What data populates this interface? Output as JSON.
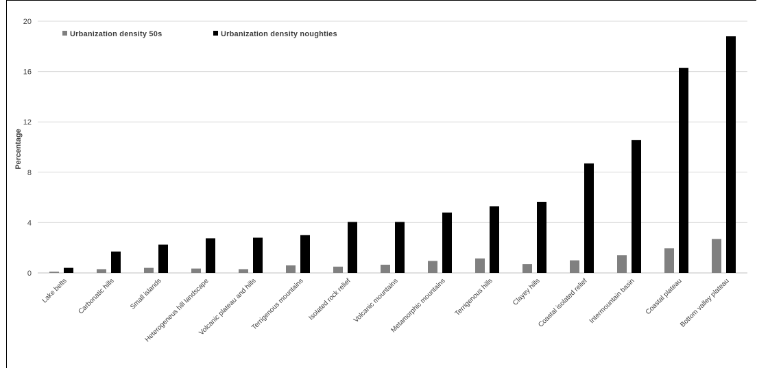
{
  "chart_data": {
    "type": "bar",
    "title": "",
    "xlabel": "",
    "ylabel": "Percentage",
    "ylim": [
      0,
      20
    ],
    "yticks": [
      0,
      4,
      8,
      12,
      16,
      20
    ],
    "grid": true,
    "legend_position": "top-left",
    "categories": [
      "Lake belts",
      "Carbonatic hills",
      "Small islands",
      "Heterogeneus hill landscape",
      "Volcanic plateau and hills",
      "Terrigenous mountains",
      "Isolated rock relief",
      "Volcanic mountains",
      "Metamorphic mountains",
      "Terrigenous hills",
      "Clayey hills",
      "Coastal isolated relief",
      "Intermountain basin",
      "Coastal plateau",
      "Bottom valley plateau"
    ],
    "series": [
      {
        "name": "Urbanization density 50s",
        "color": "#808080",
        "values": [
          0.1,
          0.3,
          0.4,
          0.35,
          0.3,
          0.6,
          0.5,
          0.65,
          0.95,
          1.15,
          0.7,
          1.0,
          1.4,
          1.95,
          2.7
        ]
      },
      {
        "name": "Urbanization density noughties",
        "color": "#000000",
        "values": [
          0.4,
          1.7,
          2.25,
          2.75,
          2.8,
          3.0,
          4.05,
          4.05,
          4.8,
          5.3,
          5.65,
          8.7,
          10.55,
          16.3,
          18.8
        ]
      }
    ]
  }
}
